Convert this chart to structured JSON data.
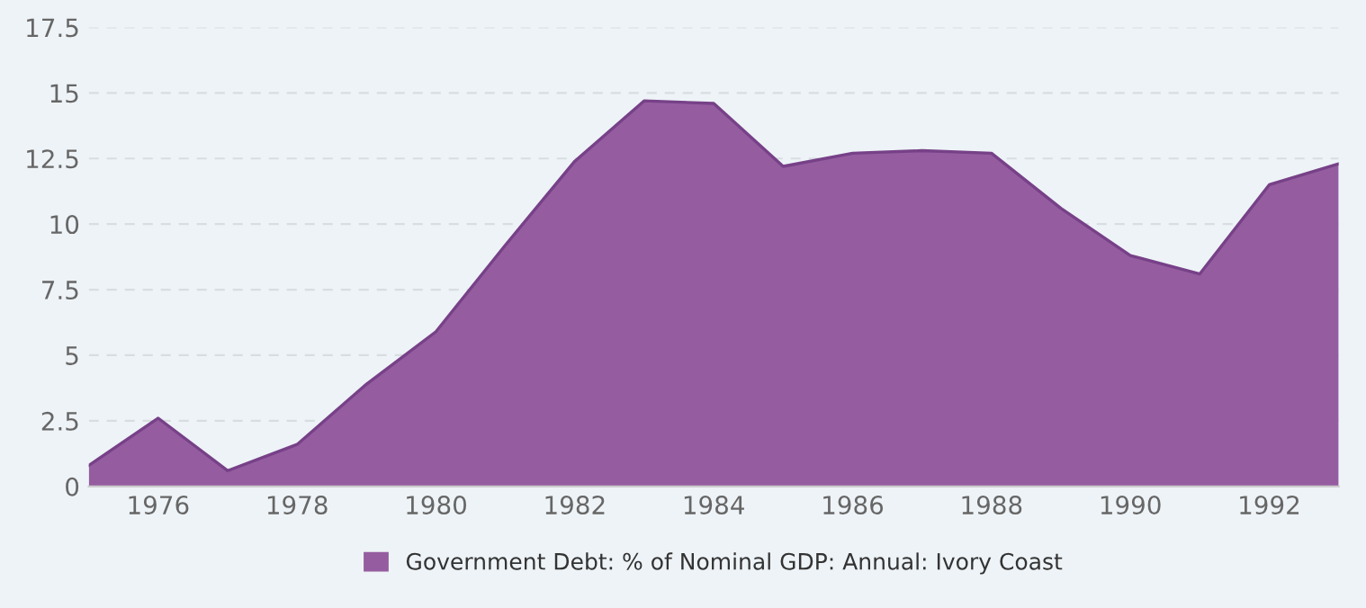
{
  "chart_data": {
    "type": "area",
    "x": [
      1975,
      1976,
      1977,
      1978,
      1979,
      1980,
      1981,
      1982,
      1983,
      1984,
      1985,
      1986,
      1987,
      1988,
      1989,
      1990,
      1991,
      1992,
      1993
    ],
    "series": [
      {
        "name": "Government Debt: % of Nominal GDP: Annual: Ivory Coast",
        "color": "#955da0",
        "values": [
          0.8,
          2.6,
          0.6,
          1.6,
          3.9,
          5.9,
          9.2,
          12.4,
          14.7,
          14.6,
          12.2,
          12.7,
          12.8,
          12.7,
          10.6,
          8.8,
          8.1,
          11.5,
          12.3
        ]
      }
    ],
    "xlim": [
      1975,
      1993
    ],
    "xticks": [
      1976,
      1978,
      1980,
      1982,
      1984,
      1986,
      1988,
      1990,
      1992
    ],
    "ylim": [
      0,
      17.5
    ],
    "yticks": [
      0,
      2.5,
      5,
      7.5,
      10,
      12.5,
      15,
      17.5
    ],
    "grid": "y",
    "legend": "bottom"
  }
}
